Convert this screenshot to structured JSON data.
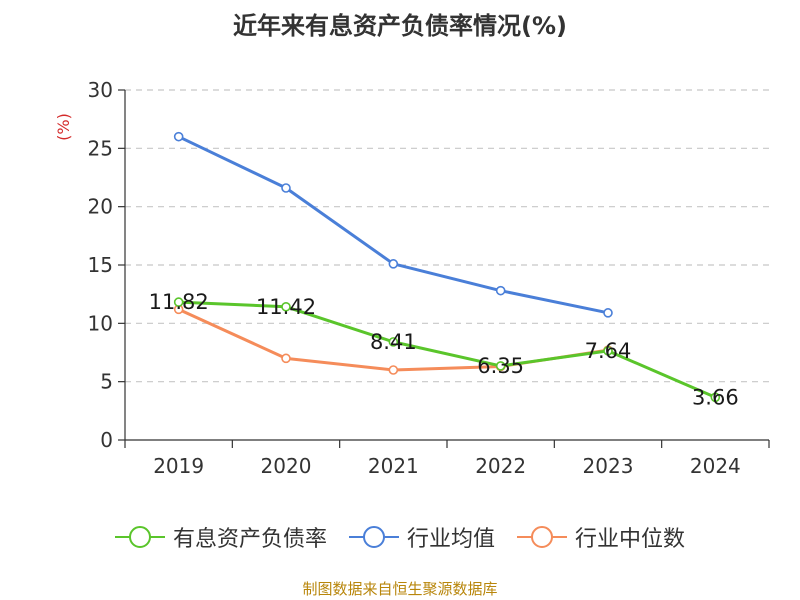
{
  "title": "近年来有息资产负债率情况(%)",
  "source": "制图数据来自恒生聚源数据库",
  "colors": {
    "series_0": "#5ac52b",
    "series_1": "#4a7fd8",
    "series_2": "#f58c5a",
    "unit_label": "#d42b2b",
    "axis": "#333333",
    "grid": "#c8c8c8"
  },
  "chart_data": {
    "type": "line",
    "title": "近年来有息资产负债率情况(%)",
    "ylabel": "(%)",
    "xlabel": "",
    "categories": [
      "2019",
      "2020",
      "2021",
      "2022",
      "2023",
      "2024"
    ],
    "ylim": [
      0,
      30
    ],
    "yticks": [
      0,
      5,
      10,
      15,
      20,
      25,
      30
    ],
    "grid": true,
    "legend_position": "bottom",
    "series": [
      {
        "name": "有息资产负债率",
        "values": [
          11.82,
          11.42,
          8.41,
          6.35,
          7.64,
          3.66
        ],
        "data_labels": [
          "11.82",
          "11.42",
          "8.41",
          "6.35",
          "7.64",
          "3.66"
        ]
      },
      {
        "name": "行业均值",
        "values": [
          26.0,
          21.6,
          15.1,
          12.8,
          10.9,
          null
        ]
      },
      {
        "name": "行业中位数",
        "values": [
          11.2,
          7.0,
          6.0,
          6.3,
          7.7,
          null
        ]
      }
    ]
  }
}
